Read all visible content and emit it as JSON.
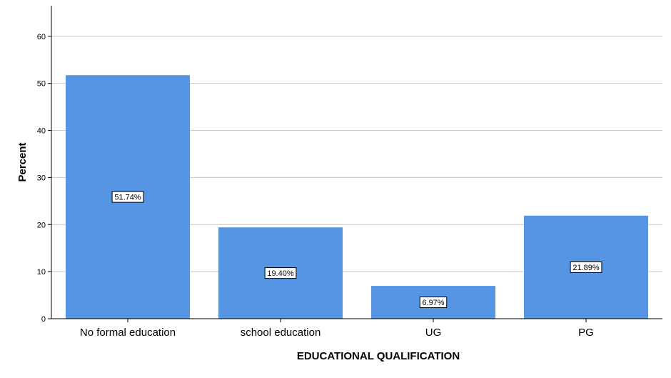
{
  "chart_data": {
    "type": "bar",
    "title": "",
    "xlabel": "EDUCATIONAL QUALIFICATION",
    "ylabel": "Percent",
    "categories": [
      "No formal education",
      "school education",
      "UG",
      "PG"
    ],
    "values": [
      51.74,
      19.4,
      6.97,
      21.89
    ],
    "data_labels": [
      "51.74%",
      "19.40%",
      "6.97%",
      "21.89%"
    ],
    "ylim": [
      0,
      66.5
    ],
    "yticks": [
      0,
      10,
      20,
      30,
      40,
      50,
      60
    ],
    "ytick_labels": [
      "0",
      "10",
      "20",
      "30",
      "40",
      "50",
      "60"
    ],
    "grid": true,
    "legend": "none",
    "bar_color": "#5595e3"
  }
}
